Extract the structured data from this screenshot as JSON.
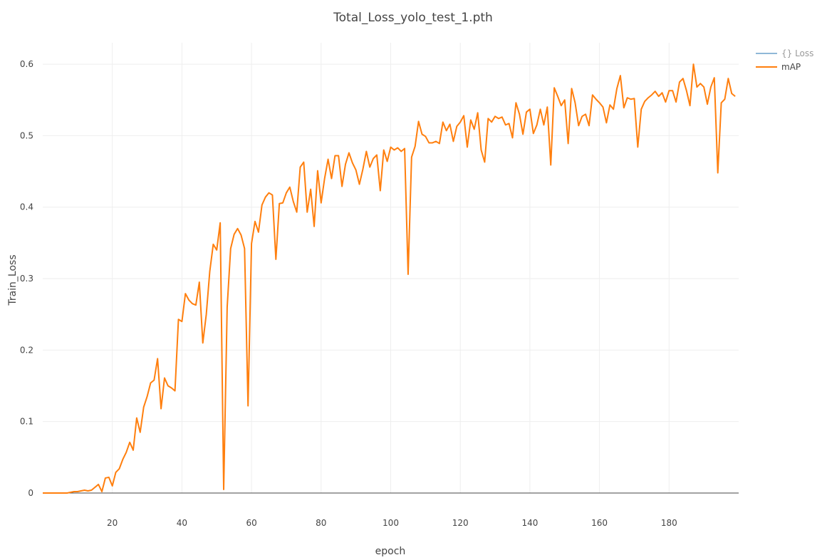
{
  "chart_data": {
    "type": "line",
    "title": "Total_Loss_yolo_test_1.pth",
    "xlabel": "epoch",
    "ylabel": "Train_Loss",
    "xlim": [
      0,
      200
    ],
    "ylim": [
      0,
      0.63
    ],
    "x_ticks": [
      20,
      40,
      60,
      80,
      100,
      120,
      140,
      160,
      180
    ],
    "y_ticks": [
      0,
      0.1,
      0.2,
      0.3,
      0.4,
      0.5,
      0.6
    ],
    "grid": true,
    "legend_position": "top-right",
    "series": [
      {
        "name": "{} Loss",
        "color": "#8fb8d8",
        "legend_text_color": "#999999",
        "x": [],
        "values": []
      },
      {
        "name": "mAP",
        "color": "#ff7f0e",
        "legend_text_color": "#444444",
        "x": [
          0,
          1,
          2,
          3,
          4,
          5,
          6,
          7,
          8,
          9,
          10,
          11,
          12,
          13,
          14,
          15,
          16,
          17,
          18,
          19,
          20,
          21,
          22,
          23,
          24,
          25,
          26,
          27,
          28,
          29,
          30,
          31,
          32,
          33,
          34,
          35,
          36,
          37,
          38,
          39,
          40,
          41,
          42,
          43,
          44,
          45,
          46,
          47,
          48,
          49,
          50,
          51,
          52,
          53,
          54,
          55,
          56,
          57,
          58,
          59,
          60,
          61,
          62,
          63,
          64,
          65,
          66,
          67,
          68,
          69,
          70,
          71,
          72,
          73,
          74,
          75,
          76,
          77,
          78,
          79,
          80,
          81,
          82,
          83,
          84,
          85,
          86,
          87,
          88,
          89,
          90,
          91,
          92,
          93,
          94,
          95,
          96,
          97,
          98,
          99,
          100,
          101,
          102,
          103,
          104,
          105,
          106,
          107,
          108,
          109,
          110,
          111,
          112,
          113,
          114,
          115,
          116,
          117,
          118,
          119,
          120,
          121,
          122,
          123,
          124,
          125,
          126,
          127,
          128,
          129,
          130,
          131,
          132,
          133,
          134,
          135,
          136,
          137,
          138,
          139,
          140,
          141,
          142,
          143,
          144,
          145,
          146,
          147,
          148,
          149,
          150,
          151,
          152,
          153,
          154,
          155,
          156,
          157,
          158,
          159,
          160,
          161,
          162,
          163,
          164,
          165,
          166,
          167,
          168,
          169,
          170,
          171,
          172,
          173,
          174,
          175,
          176,
          177,
          178,
          179,
          180,
          181,
          182,
          183,
          184,
          185,
          186,
          187,
          188,
          189,
          190,
          191,
          192,
          193,
          194,
          195,
          196,
          197,
          198,
          199
        ],
        "values": [
          0,
          0,
          0,
          0,
          0,
          0,
          0,
          0,
          0.001,
          0.002,
          0.002,
          0.003,
          0.004,
          0.003,
          0.004,
          0.008,
          0.012,
          0.002,
          0.021,
          0.022,
          0.01,
          0.029,
          0.034,
          0.047,
          0.057,
          0.071,
          0.06,
          0.105,
          0.085,
          0.12,
          0.135,
          0.154,
          0.158,
          0.188,
          0.118,
          0.161,
          0.15,
          0.147,
          0.143,
          0.243,
          0.24,
          0.279,
          0.27,
          0.265,
          0.263,
          0.295,
          0.21,
          0.25,
          0.31,
          0.348,
          0.34,
          0.378,
          0.005,
          0.26,
          0.342,
          0.362,
          0.37,
          0.361,
          0.342,
          0.122,
          0.349,
          0.38,
          0.365,
          0.403,
          0.414,
          0.42,
          0.417,
          0.327,
          0.405,
          0.406,
          0.42,
          0.428,
          0.408,
          0.393,
          0.456,
          0.463,
          0.393,
          0.425,
          0.373,
          0.451,
          0.406,
          0.44,
          0.467,
          0.44,
          0.472,
          0.472,
          0.429,
          0.46,
          0.476,
          0.462,
          0.452,
          0.432,
          0.453,
          0.478,
          0.456,
          0.468,
          0.473,
          0.423,
          0.48,
          0.464,
          0.484,
          0.48,
          0.483,
          0.478,
          0.482,
          0.306,
          0.47,
          0.485,
          0.52,
          0.502,
          0.499,
          0.49,
          0.49,
          0.492,
          0.489,
          0.519,
          0.507,
          0.516,
          0.492,
          0.513,
          0.519,
          0.528,
          0.484,
          0.522,
          0.509,
          0.532,
          0.48,
          0.463,
          0.524,
          0.519,
          0.527,
          0.524,
          0.526,
          0.515,
          0.517,
          0.497,
          0.546,
          0.53,
          0.502,
          0.533,
          0.537,
          0.503,
          0.515,
          0.537,
          0.515,
          0.54,
          0.459,
          0.567,
          0.555,
          0.542,
          0.55,
          0.489,
          0.566,
          0.546,
          0.514,
          0.527,
          0.53,
          0.514,
          0.557,
          0.551,
          0.546,
          0.54,
          0.518,
          0.543,
          0.537,
          0.566,
          0.584,
          0.539,
          0.553,
          0.551,
          0.552,
          0.484,
          0.537,
          0.548,
          0.553,
          0.557,
          0.562,
          0.555,
          0.56,
          0.547,
          0.563,
          0.563,
          0.547,
          0.575,
          0.58,
          0.563,
          0.542,
          0.6,
          0.568,
          0.573,
          0.568,
          0.544,
          0.568,
          0.581,
          0.448,
          0.546,
          0.551,
          0.58,
          0.559,
          0.555
        ]
      }
    ],
    "zero_line": true
  }
}
